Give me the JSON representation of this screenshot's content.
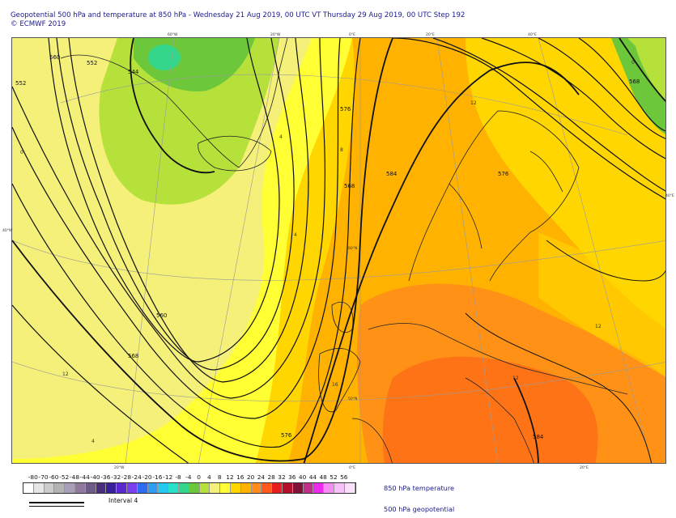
{
  "header": {
    "title": "Geopotential 500 hPa and temperature at 850 hPa - Wednesday 21 Aug 2019, 00 UTC VT Thursday 29 Aug 2019, 00 UTC Step 192",
    "copyright": "© ECMWF 2019"
  },
  "map": {
    "graticule_labels": [
      "60°W",
      "20°W",
      "0°E",
      "20°E",
      "40°E",
      "40°W",
      "40°E",
      "20°W",
      "0°E",
      "20°E",
      "60°N",
      "50°N"
    ],
    "contour_labels": [
      "552",
      "544",
      "560",
      "568",
      "576",
      "584",
      "576",
      "568",
      "560",
      "552",
      "568",
      "576",
      "584"
    ],
    "temp_labels": [
      "12",
      "8",
      "4",
      "4",
      "12",
      "12",
      "0",
      "0",
      "4",
      "16",
      "12"
    ]
  },
  "legend": {
    "values": [
      "-80",
      "-70",
      "-60",
      "-52",
      "-48",
      "-44",
      "-40",
      "-36",
      "-32",
      "-28",
      "-24",
      "-20",
      "-16",
      "-12",
      "-8",
      "-4",
      "0",
      "4",
      "8",
      "12",
      "16",
      "20",
      "24",
      "28",
      "32",
      "36",
      "40",
      "44",
      "48",
      "52",
      "56"
    ],
    "colors": [
      "#ffffff",
      "#e6e6e6",
      "#cccccc",
      "#b3b3b3",
      "#a8a0b8",
      "#8f7a9e",
      "#6e5a86",
      "#4b2d7e",
      "#3a1f9a",
      "#5a2ad0",
      "#7a3df0",
      "#2f6cf4",
      "#2e9cf2",
      "#27c8f0",
      "#27e2c8",
      "#33d68a",
      "#6cc83a",
      "#b6e03a",
      "#f4f07a",
      "#ffff33",
      "#ffd600",
      "#ffb300",
      "#ff8c1a",
      "#ff5a1a",
      "#e61e1e",
      "#b30f2a",
      "#80123a",
      "#c0308a",
      "#ef2aef",
      "#f58cf5",
      "#f8c0f8",
      "#fae0fa"
    ],
    "temp_label": "850 hPa temperature",
    "geo_label": "500 hPa geopotential",
    "interval_label": "Interval 4"
  }
}
